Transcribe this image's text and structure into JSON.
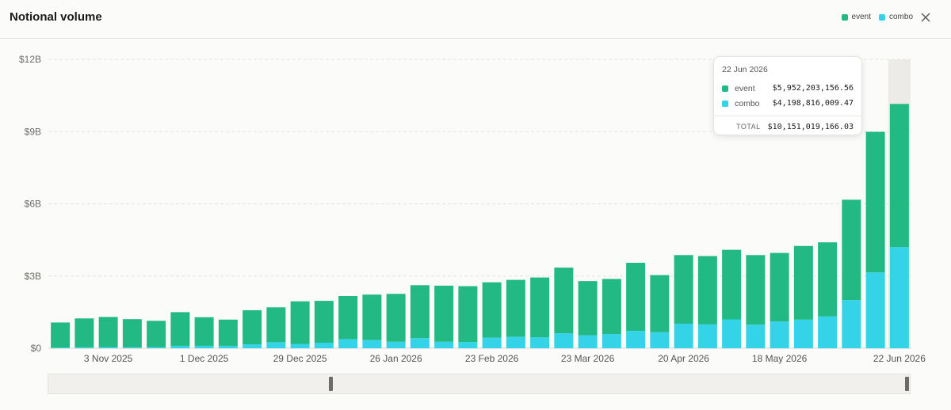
{
  "header": {
    "title": "Notional volume"
  },
  "legend": [
    {
      "label": "event",
      "color": "#23b985"
    },
    {
      "label": "combo",
      "color": "#34d3e8"
    }
  ],
  "tooltip": {
    "date": "22 Jun 2026",
    "rows": [
      {
        "label": "event",
        "value": "$5,952,203,156.56"
      },
      {
        "label": "combo",
        "value": "$4,198,816,009.47"
      }
    ],
    "total_label": "TOTAL",
    "total_value": "$10,151,019,166.03"
  },
  "chart_data": {
    "type": "bar",
    "stacked": true,
    "unit": "$B",
    "ylim": [
      0,
      12
    ],
    "y_ticks": [
      "$0",
      "$3B",
      "$6B",
      "$9B",
      "$12B"
    ],
    "x_tick_labels": [
      "3 Nov 2025",
      "1 Dec 2025",
      "29 Dec 2025",
      "26 Jan 2026",
      "23 Feb 2026",
      "23 Mar 2026",
      "20 Apr 2026",
      "18 May 2026",
      "22 Jun 2026"
    ],
    "categories": [
      "20 Oct 2025",
      "27 Oct 2025",
      "3 Nov 2025",
      "10 Nov 2025",
      "17 Nov 2025",
      "24 Nov 2025",
      "1 Dec 2025",
      "8 Dec 2025",
      "15 Dec 2025",
      "22 Dec 2025",
      "29 Dec 2025",
      "5 Jan 2026",
      "12 Jan 2026",
      "19 Jan 2026",
      "26 Jan 2026",
      "2 Feb 2026",
      "9 Feb 2026",
      "16 Feb 2026",
      "23 Feb 2026",
      "2 Mar 2026",
      "9 Mar 2026",
      "16 Mar 2026",
      "23 Mar 2026",
      "30 Mar 2026",
      "6 Apr 2026",
      "13 Apr 2026",
      "20 Apr 2026",
      "27 Apr 2026",
      "4 May 2026",
      "11 May 2026",
      "18 May 2026",
      "25 May 2026",
      "1 Jun 2026",
      "8 Jun 2026",
      "15 Jun 2026",
      "22 Jun 2026"
    ],
    "series": [
      {
        "name": "event",
        "color": "#23b985",
        "values": [
          1.04,
          1.2,
          1.25,
          1.17,
          1.09,
          1.4,
          1.19,
          1.09,
          1.42,
          1.45,
          1.77,
          1.74,
          1.79,
          1.89,
          1.99,
          2.2,
          2.33,
          2.32,
          2.3,
          2.36,
          2.49,
          2.73,
          2.25,
          2.29,
          2.83,
          2.37,
          2.85,
          2.84,
          2.89,
          2.89,
          2.85,
          3.06,
          3.08,
          4.17,
          5.84,
          5.95
        ]
      },
      {
        "name": "combo",
        "color": "#34d3e8",
        "values": [
          0.03,
          0.04,
          0.05,
          0.04,
          0.05,
          0.1,
          0.1,
          0.1,
          0.16,
          0.25,
          0.18,
          0.23,
          0.38,
          0.34,
          0.27,
          0.42,
          0.27,
          0.26,
          0.44,
          0.48,
          0.45,
          0.62,
          0.54,
          0.59,
          0.72,
          0.67,
          1.02,
          0.99,
          1.2,
          0.98,
          1.11,
          1.19,
          1.32,
          2.0,
          3.15,
          4.2
        ]
      }
    ],
    "highlighted_category": "22 Jun 2026"
  }
}
